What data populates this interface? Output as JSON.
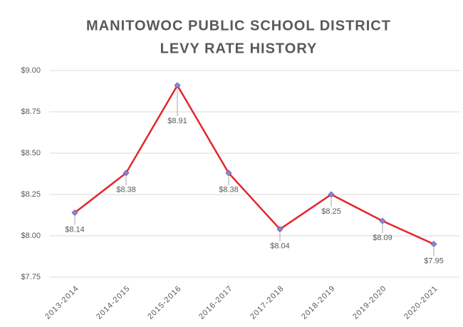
{
  "chart_data": {
    "type": "line",
    "title": [
      "MANITOWOC PUBLIC SCHOOL DISTRICT",
      "LEVY RATE HISTORY"
    ],
    "categories": [
      "2013-2014",
      "2014-2015",
      "2015-2016",
      "2016-2017",
      "2017-2018",
      "2018-2019",
      "2019-2020",
      "2020-2021"
    ],
    "series": [
      {
        "name": "Levy Rate",
        "color": "#e3262b",
        "marker_color": "#8f83c9",
        "values": [
          8.14,
          8.38,
          8.91,
          8.38,
          8.04,
          8.25,
          8.09,
          7.95
        ],
        "value_labels": [
          "$8.14",
          "$8.38",
          "$8.91",
          "$8.38",
          "$8.04",
          "$8.25",
          "$8.09",
          "$7.95"
        ]
      }
    ],
    "ylim": [
      7.75,
      9.0
    ],
    "yticks": [
      {
        "value": 7.75,
        "label": "$7.75"
      },
      {
        "value": 8.0,
        "label": "$8.00"
      },
      {
        "value": 8.25,
        "label": "$8.25"
      },
      {
        "value": 8.5,
        "label": "$8.50"
      },
      {
        "value": 8.75,
        "label": "$8.75"
      },
      {
        "value": 9.0,
        "label": "$9.00"
      }
    ],
    "grid": true
  }
}
